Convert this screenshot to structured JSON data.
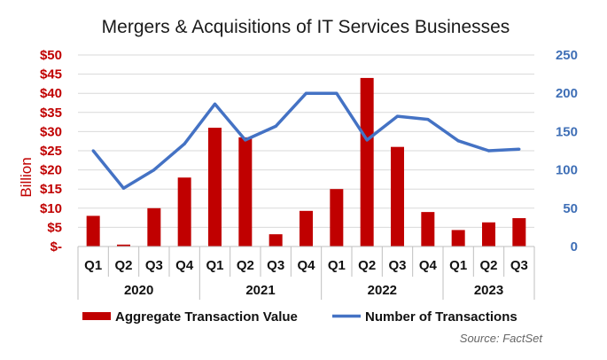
{
  "chart_data": {
    "type": "bar+line",
    "title": "Mergers & Acquisitions of IT Services Businesses",
    "categories": [
      "Q1",
      "Q2",
      "Q3",
      "Q4",
      "Q1",
      "Q2",
      "Q3",
      "Q4",
      "Q1",
      "Q2",
      "Q3",
      "Q4",
      "Q1",
      "Q2",
      "Q3"
    ],
    "years": [
      {
        "label": "2020",
        "span": 4
      },
      {
        "label": "2021",
        "span": 4
      },
      {
        "label": "2022",
        "span": 4
      },
      {
        "label": "2023",
        "span": 3
      }
    ],
    "series": [
      {
        "name": "Aggregate Transaction Value",
        "type": "bar",
        "axis": "left",
        "color": "#c00000",
        "values": [
          8,
          0.5,
          10,
          18,
          31,
          28.5,
          3.2,
          9.3,
          15,
          44,
          26,
          9,
          4.3,
          6.3,
          7.4
        ]
      },
      {
        "name": "Number of Transactions",
        "type": "line",
        "axis": "right",
        "color": "#4472c4",
        "values": [
          125,
          76,
          100,
          134,
          186,
          139,
          157,
          200,
          200,
          139,
          170,
          166,
          138,
          125,
          127
        ]
      }
    ],
    "left_axis": {
      "label": "Billion",
      "ylim": [
        0,
        50
      ],
      "ticks": [
        0,
        5,
        10,
        15,
        20,
        25,
        30,
        35,
        40,
        45,
        50
      ],
      "tick_labels": [
        "$-",
        "$5",
        "$10",
        "$15",
        "$20",
        "$25",
        "$30",
        "$35",
        "$40",
        "$45",
        "$50"
      ],
      "color": "#c00000"
    },
    "right_axis": {
      "label": "",
      "ylim": [
        0,
        250
      ],
      "ticks": [
        0,
        50,
        100,
        150,
        200,
        250
      ],
      "tick_labels": [
        "0",
        "50",
        "100",
        "150",
        "200",
        "250"
      ],
      "color": "#3f6fb6"
    },
    "grid": true,
    "legend_position": "bottom",
    "source": "Source: FactSet"
  }
}
